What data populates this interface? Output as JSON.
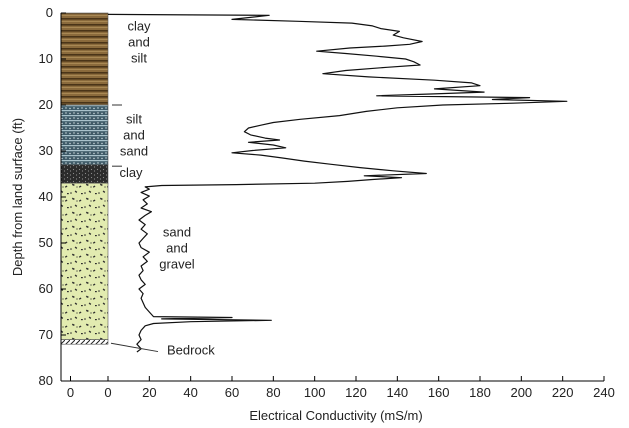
{
  "chart_data": {
    "type": "line",
    "xlabel": "Electrical Conductivity (mS/m)",
    "ylabel": "Depth from land surface (ft)",
    "xlim": [
      0,
      240
    ],
    "ylim": [
      0,
      80
    ],
    "y_inverted": true,
    "xticks": [
      0,
      20,
      40,
      60,
      80,
      100,
      120,
      140,
      160,
      180,
      200,
      220,
      240
    ],
    "yticks": [
      0,
      10,
      20,
      30,
      40,
      50,
      60,
      70,
      80
    ],
    "log_column_zero_label": "0",
    "grid": false,
    "colors": {
      "line": "#111111",
      "clay_silt": "#8a6a3c",
      "silt_sand": "#3f5b68",
      "clay": "#2b2b2b",
      "sand_gravel": "#e2ebb0",
      "axis": "#000000"
    },
    "lithology": [
      {
        "top": 0,
        "bottom": 20,
        "pattern": "clay-silt",
        "label_lines": [
          "clay",
          "and",
          "silt"
        ]
      },
      {
        "top": 20,
        "bottom": 33,
        "pattern": "silt-sand",
        "label_lines": [
          "silt",
          "and",
          "sand"
        ]
      },
      {
        "top": 33,
        "bottom": 37,
        "pattern": "clay",
        "label_lines": [
          "clay"
        ]
      },
      {
        "top": 37,
        "bottom": 71,
        "pattern": "sand-gravel",
        "label_lines": [
          "sand",
          "and",
          "gravel"
        ]
      },
      {
        "top": 71,
        "bottom": 72,
        "pattern": "bedrock",
        "label_lines": [
          "Bedrock"
        ]
      }
    ],
    "series": [
      {
        "points": [
          [
            0,
            0.3
          ],
          [
            78,
            0.5
          ],
          [
            60,
            1.4
          ],
          [
            92,
            1.8
          ],
          [
            118,
            2.2
          ],
          [
            128,
            2.8
          ],
          [
            132,
            3.4
          ],
          [
            141,
            4.0
          ],
          [
            138,
            4.8
          ],
          [
            143,
            5.4
          ],
          [
            152,
            6.2
          ],
          [
            146,
            6.8
          ],
          [
            134,
            7.2
          ],
          [
            117,
            7.6
          ],
          [
            101,
            8.3
          ],
          [
            115,
            8.8
          ],
          [
            130,
            9.4
          ],
          [
            144,
            10.0
          ],
          [
            148,
            10.6
          ],
          [
            151,
            11.3
          ],
          [
            135,
            11.8
          ],
          [
            115,
            12.5
          ],
          [
            104,
            13.2
          ],
          [
            126,
            13.9
          ],
          [
            158,
            14.6
          ],
          [
            176,
            15.2
          ],
          [
            180,
            15.8
          ],
          [
            158,
            16.5
          ],
          [
            182,
            17.2
          ],
          [
            156,
            17.6
          ],
          [
            130,
            18.0
          ],
          [
            204,
            18.4
          ],
          [
            186,
            18.8
          ],
          [
            222,
            19.2
          ],
          [
            196,
            19.6
          ],
          [
            162,
            20.0
          ],
          [
            140,
            20.6
          ],
          [
            125,
            21.4
          ],
          [
            112,
            22.3
          ],
          [
            93,
            23.1
          ],
          [
            80,
            23.8
          ],
          [
            74,
            24.4
          ],
          [
            68,
            25.0
          ],
          [
            66,
            25.8
          ],
          [
            69,
            26.5
          ],
          [
            76,
            27.2
          ],
          [
            83,
            27.6
          ],
          [
            68,
            28.1
          ],
          [
            80,
            28.7
          ],
          [
            86,
            29.3
          ],
          [
            70,
            29.9
          ],
          [
            60,
            30.4
          ],
          [
            74,
            30.9
          ],
          [
            84,
            31.5
          ],
          [
            95,
            32.2
          ],
          [
            108,
            32.9
          ],
          [
            122,
            33.6
          ],
          [
            138,
            34.3
          ],
          [
            154,
            34.9
          ],
          [
            124,
            35.4
          ],
          [
            142,
            35.8
          ],
          [
            128,
            36.2
          ],
          [
            116,
            36.6
          ],
          [
            100,
            37.0
          ],
          [
            62,
            37.3
          ],
          [
            26,
            37.5
          ],
          [
            18,
            37.8
          ],
          [
            20,
            38.3
          ],
          [
            16,
            39.0
          ],
          [
            20,
            39.8
          ],
          [
            17,
            40.6
          ],
          [
            19,
            41.5
          ],
          [
            16,
            42.4
          ],
          [
            21,
            43.2
          ],
          [
            18,
            44.0
          ],
          [
            15,
            45.0
          ],
          [
            18,
            46.0
          ],
          [
            16,
            47.0
          ],
          [
            19,
            48.0
          ],
          [
            17,
            49.0
          ],
          [
            15,
            50.0
          ],
          [
            16,
            51.0
          ],
          [
            20,
            52.0
          ],
          [
            17,
            53.0
          ],
          [
            19,
            54.0
          ],
          [
            16,
            55.0
          ],
          [
            17,
            56.0
          ],
          [
            15,
            57.0
          ],
          [
            16,
            58.0
          ],
          [
            18,
            59.0
          ],
          [
            15,
            60.0
          ],
          [
            17,
            61.0
          ],
          [
            16,
            62.0
          ],
          [
            17,
            63.0
          ],
          [
            18,
            64.0
          ],
          [
            20,
            65.0
          ],
          [
            22,
            66.0
          ],
          [
            60,
            66.2
          ],
          [
            26,
            66.5
          ],
          [
            79,
            66.8
          ],
          [
            40,
            67.1
          ],
          [
            22,
            67.5
          ],
          [
            18,
            68.0
          ],
          [
            16,
            69.0
          ],
          [
            15,
            70.0
          ],
          [
            16,
            71.0
          ],
          [
            14,
            72.0
          ],
          [
            16,
            73.0
          ],
          [
            14,
            73.7
          ]
        ]
      }
    ]
  }
}
